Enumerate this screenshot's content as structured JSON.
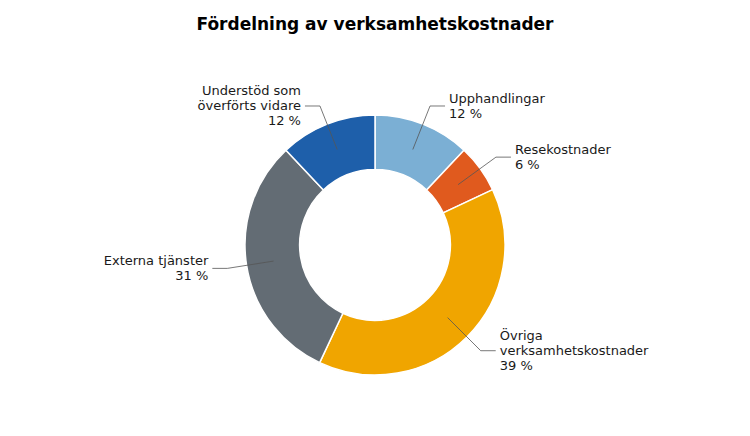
{
  "chart_data": {
    "type": "donut",
    "title": "Fördelning av verksamhetskostnader",
    "categories": [
      "Upphandlingar",
      "Resekostnader",
      "Övriga\nverksamhetskostnader",
      "Externa tjänster",
      "Understöd som\növerförts vidare"
    ],
    "values": [
      12,
      6,
      39,
      31,
      12
    ],
    "value_labels": [
      "12 %",
      "6 %",
      "39 %",
      "31 %",
      "12 %"
    ],
    "colors": [
      "#7BAFD4",
      "#E05A1E",
      "#F0A500",
      "#636C74",
      "#1E5FAA"
    ],
    "data_labels": true
  }
}
